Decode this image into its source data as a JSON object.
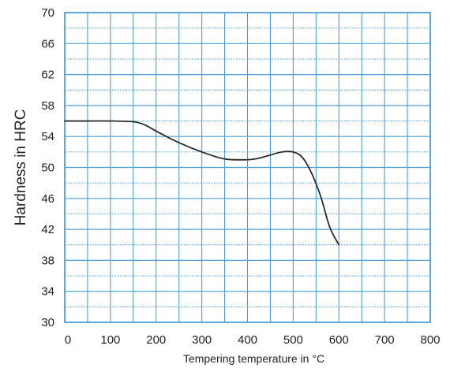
{
  "chart_data": {
    "type": "line",
    "title": "",
    "xlabel": "Tempering temperature in °C",
    "ylabel": "Hardness in HRC",
    "xlim": [
      0,
      800
    ],
    "ylim": [
      30,
      70
    ],
    "x_ticks": [
      0,
      100,
      200,
      300,
      400,
      500,
      600,
      700,
      800
    ],
    "y_ticks": [
      30,
      34,
      38,
      42,
      46,
      50,
      54,
      58,
      62,
      66,
      70
    ],
    "x_minor_step": 50,
    "y_minor_step": 2,
    "grid": true,
    "grid_color": "#4a9fd8",
    "line_color": "#2b2b2b",
    "series": [
      {
        "x": [
          0,
          50,
          100,
          150,
          175,
          200,
          250,
          300,
          350,
          400,
          425,
          450,
          475,
          500,
          520,
          540,
          560,
          580,
          600
        ],
        "y": [
          56,
          56,
          56,
          55.9,
          55.5,
          54.7,
          53.2,
          52,
          51.1,
          51,
          51.2,
          51.6,
          52,
          52,
          51.3,
          49.3,
          46.3,
          42.3,
          40
        ]
      }
    ]
  }
}
